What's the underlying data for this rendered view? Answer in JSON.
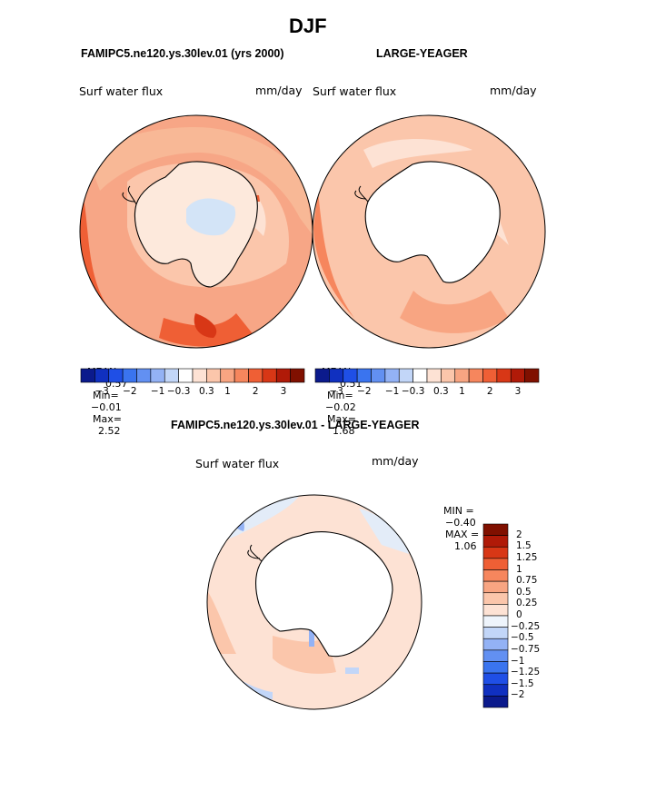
{
  "title": "DJF",
  "panel_left": {
    "case": "FAMIPC5.ne120.ys.30lev.01 (yrs 2000)",
    "variable": "Surf water flux",
    "units": "mm/day",
    "mean_label": "MEAN=",
    "mean": "0.57",
    "min_label": "Min=",
    "min": "−0.01",
    "max_label": "Max=",
    "max": "2.52"
  },
  "panel_right": {
    "case": "LARGE-YEAGER",
    "variable": "Surf water flux",
    "units": "mm/day",
    "mean_label": "MEAN=",
    "mean": "0.51",
    "min_label": "Min=",
    "min": "−0.02",
    "max_label": "Max=",
    "max": "1.68"
  },
  "panel_diff": {
    "case": "FAMIPC5.ne120.ys.30lev.01 - LARGE-YEAGER",
    "variable": "Surf water flux",
    "units": "mm/day",
    "min_label": "MIN =",
    "min": "−0.40",
    "max_label": "MAX =",
    "max": "1.06"
  },
  "colorbar_top": {
    "colors": [
      "#0b1a8c",
      "#1030c0",
      "#1f4fe6",
      "#3a74ef",
      "#6290f2",
      "#93b2f5",
      "#c2d6f8",
      "#ffffff",
      "#fde2d4",
      "#fbc6ab",
      "#f8a582",
      "#f6865d",
      "#ef5f35",
      "#d83716",
      "#b01a08",
      "#801000"
    ],
    "tick_labels": [
      "−3",
      "−2",
      "−1",
      "−0.3",
      "0.3",
      "1",
      "2",
      "3"
    ]
  },
  "colorbar_diff": {
    "colors": [
      "#801000",
      "#b01a08",
      "#d83716",
      "#ef5f35",
      "#f6865d",
      "#f8a582",
      "#fbc6ab",
      "#fde2d4",
      "#eef4fb",
      "#c2d6f8",
      "#93b2f5",
      "#6290f2",
      "#3a74ef",
      "#1f4fe6",
      "#1030c0",
      "#0b1a8c"
    ],
    "tick_labels": [
      "2",
      "1.5",
      "1.25",
      "1",
      "0.75",
      "0.5",
      "0.25",
      "0",
      "−0.25",
      "−0.5",
      "−0.75",
      "−1",
      "−1.25",
      "−1.5",
      "−2"
    ]
  },
  "map_colors": {
    "ocean_base_left": "#f7a686",
    "ocean_base_right": "#fbc6ab",
    "ocean_base_diff": "#fde2d4",
    "land_left": "#fde9dc",
    "land_blue": "#d3e4f7",
    "land_white": "#ffffff"
  }
}
